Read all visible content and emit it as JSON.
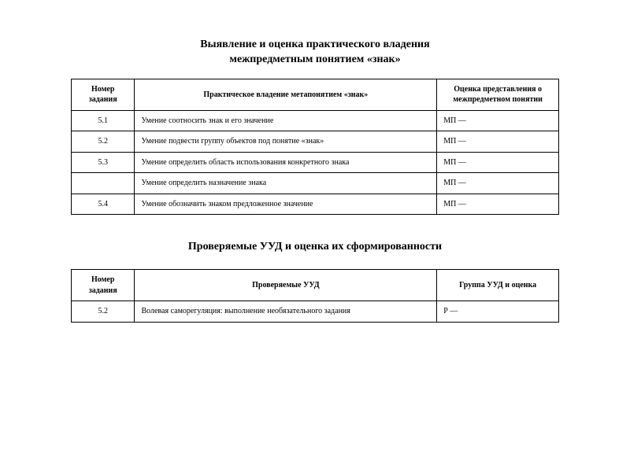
{
  "background_color": "#ffffff",
  "text_color": "#000000",
  "border_color": "#000000",
  "font_family": "Georgia, 'Times New Roman', serif",
  "title_fontsize_pt": 11,
  "body_fontsize_pt": 8,
  "section1": {
    "title_line1": "Выявление и оценка практического владения",
    "title_line2": "межпредметным понятием «знак»",
    "table": {
      "type": "table",
      "column_widths_pct": [
        13,
        62,
        25
      ],
      "columns": [
        "Номер задания",
        "Практическое владение метапонятием «знак»",
        "Оценка представления о межпредметном понятии"
      ],
      "rows": [
        {
          "num": "5.1",
          "desc": "Умение соотносить знак и его значение",
          "score": "МП —"
        },
        {
          "num": "5.2",
          "desc": "Умение подвести группу объектов под понятие «знак»",
          "score": "МП —"
        },
        {
          "num": "5.3",
          "desc": "Умение определить область использования конкретного знака",
          "score": "МП —"
        },
        {
          "num": "",
          "desc": "Умение определить назначение знака",
          "score": "МП —"
        },
        {
          "num": "5.4",
          "desc": "Умение обозначить знаком предложенное значение",
          "score": "МП —"
        }
      ]
    }
  },
  "section2": {
    "title": "Проверяемые УУД и оценка их сформированности",
    "table": {
      "type": "table",
      "column_widths_pct": [
        13,
        62,
        25
      ],
      "columns": [
        "Номер задания",
        "Проверяемые УУД",
        "Группа УУД и оценка"
      ],
      "rows": [
        {
          "num": "5.2",
          "desc": "Волевая саморегуляция: выполнение необязательного задания",
          "score": "Р —"
        }
      ]
    }
  }
}
